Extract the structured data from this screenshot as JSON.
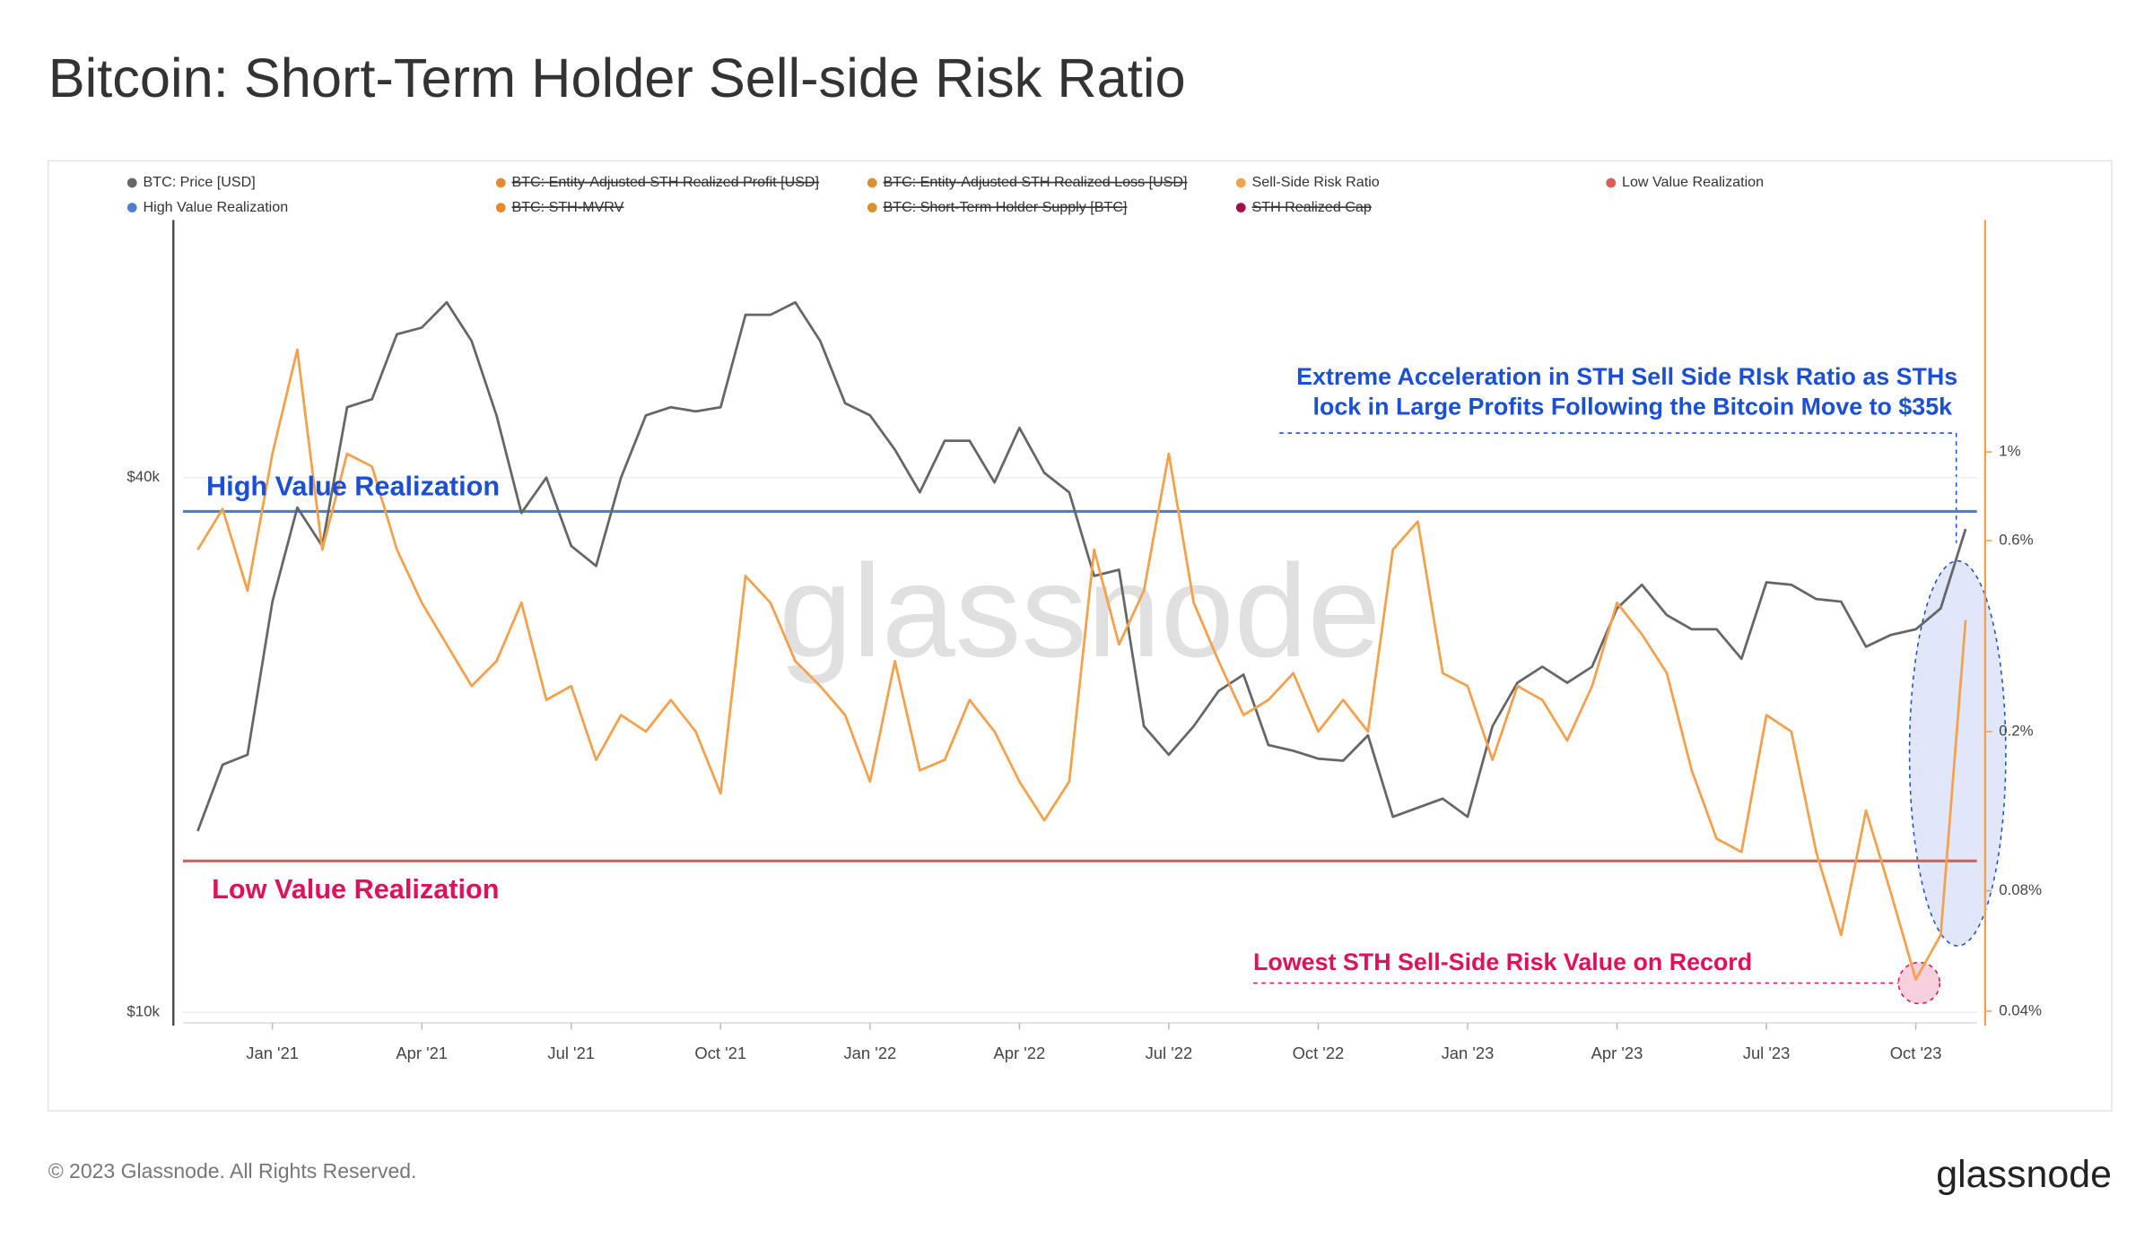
{
  "chart_data": {
    "type": "line",
    "title": "Bitcoin: Short-Term Holder Sell-side Risk Ratio",
    "categories": [
      null,
      null,
      null,
      "Jan '21",
      null,
      null,
      null,
      null,
      null,
      "Apr '21",
      null,
      null,
      null,
      null,
      null,
      "Jul '21",
      null,
      null,
      null,
      null,
      null,
      "Oct '21",
      null,
      null,
      null,
      null,
      null,
      "Jan '22",
      null,
      null,
      null,
      null,
      null,
      "Apr '22",
      null,
      null,
      null,
      null,
      null,
      "Jul '22",
      null,
      null,
      null,
      null,
      null,
      "Oct '22",
      null,
      null,
      null,
      null,
      null,
      "Jan '23",
      null,
      null,
      null,
      null,
      null,
      "Apr '23",
      null,
      null,
      null,
      null,
      null,
      "Jul '23",
      null,
      null,
      null,
      null,
      null,
      "Oct '23",
      null,
      null
    ],
    "series": [
      {
        "name": "BTC: Price [USD]",
        "color": "#666666",
        "axis": "y",
        "values": [
          16000,
          19000,
          19500,
          29000,
          37000,
          33500,
          48000,
          49000,
          58000,
          59000,
          63000,
          57000,
          47000,
          36500,
          40000,
          33500,
          31800,
          40000,
          47000,
          48000,
          47500,
          48000,
          61000,
          61000,
          63000,
          57000,
          48500,
          47000,
          43000,
          38500,
          44000,
          44000,
          39500,
          45500,
          40500,
          38500,
          31000,
          31500,
          21000,
          19500,
          21000,
          23000,
          24000,
          20000,
          19700,
          19300,
          19200,
          20500,
          16600,
          17000,
          17400,
          16600,
          21000,
          23500,
          24500,
          23500,
          24500,
          28500,
          30300,
          28000,
          27000,
          27000,
          25000,
          30500,
          30300,
          29200,
          29000,
          25800,
          26600,
          27000,
          28500,
          35000
        ]
      },
      {
        "name": "Sell-Side Risk Ratio",
        "color": "#f5a04a",
        "axis": "y2",
        "values": [
          0.57,
          0.72,
          0.45,
          0.99,
          1.8,
          0.57,
          0.99,
          0.92,
          0.57,
          0.42,
          0.33,
          0.26,
          0.3,
          0.42,
          0.24,
          0.26,
          0.17,
          0.22,
          0.2,
          0.24,
          0.2,
          0.14,
          0.49,
          0.42,
          0.3,
          0.26,
          0.22,
          0.15,
          0.3,
          0.16,
          0.17,
          0.24,
          0.2,
          0.15,
          0.12,
          0.15,
          0.57,
          0.33,
          0.45,
          0.99,
          0.42,
          0.3,
          0.22,
          0.24,
          0.28,
          0.2,
          0.24,
          0.2,
          0.57,
          0.67,
          0.28,
          0.26,
          0.17,
          0.26,
          0.24,
          0.19,
          0.26,
          0.42,
          0.35,
          0.28,
          0.16,
          0.108,
          0.1,
          0.22,
          0.2,
          0.1,
          0.062,
          0.127,
          0.079,
          0.048,
          0.062,
          0.38
        ]
      }
    ],
    "hlines": [
      {
        "name": "Low Value Realization",
        "color": "#e05a5a",
        "axis": "y2",
        "value": 0.095
      },
      {
        "name": "High Value Realization",
        "color": "#4a7fd4",
        "axis": "y2",
        "value": 0.71
      }
    ],
    "hidden_series": [
      {
        "name": "BTC: Entity-Adjusted STH Realized Profit [USD]",
        "color": "#e8882e"
      },
      {
        "name": "BTC: Entity-Adjusted STH Realized Loss [USD]",
        "color": "#d9902e"
      },
      {
        "name": "BTC: STH-MVRV",
        "color": "#e8882e"
      },
      {
        "name": "BTC: Short-Term Holder Supply [BTC]",
        "color": "#d9902e"
      },
      {
        "name": "STH Realized Cap",
        "color": "#a0114a"
      }
    ],
    "ylog": true,
    "ylim": [
      9800,
      78000
    ],
    "yticks": [
      {
        "value": 10000,
        "label": "$10k"
      },
      {
        "value": 40000,
        "label": "$40k"
      }
    ],
    "y2log": true,
    "y2lim": [
      0.038,
      3.8
    ],
    "y2ticks": [
      {
        "value": 0.04,
        "label": "0.04%"
      },
      {
        "value": 0.08,
        "label": "0.08%"
      },
      {
        "value": 0.2,
        "label": "0.2%"
      },
      {
        "value": 0.6,
        "label": "0.6%"
      },
      {
        "value": 1,
        "label": "1%"
      }
    ],
    "grid": true,
    "annotations": [
      {
        "text": "High Value Realization",
        "color": "#1a4fd6"
      },
      {
        "text": "Low Value Realization",
        "color": "#e0105a"
      },
      {
        "text": "Extreme Acceleration in STH Sell Side RIsk Ratio as STHs",
        "color": "#1a4fd6"
      },
      {
        "text": "lock in Large Profits Following the Bitcoin Move to $35k",
        "color": "#1a4fd6"
      },
      {
        "text": "Lowest STH Sell-Side Risk Value on Record",
        "color": "#e0105a"
      }
    ],
    "watermark": "glassnode",
    "footer": "© 2023 Glassnode. All Rights Reserved.",
    "logo": "glassnode"
  }
}
